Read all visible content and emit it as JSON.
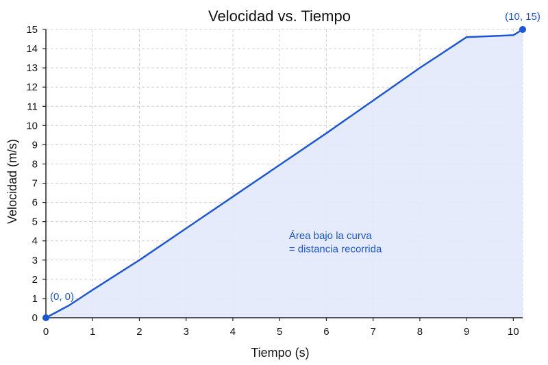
{
  "chart_data": {
    "type": "area",
    "title": "Velocidad vs. Tiempo",
    "xlabel": "Tiempo (s)",
    "ylabel": "Velocidad (m/s)",
    "xlim": [
      0,
      10.2
    ],
    "ylim": [
      0,
      15
    ],
    "x_ticks": [
      0,
      1,
      2,
      3,
      4,
      5,
      6,
      7,
      8,
      9,
      10
    ],
    "y_ticks": [
      0,
      1,
      2,
      3,
      4,
      5,
      6,
      7,
      8,
      9,
      10,
      11,
      12,
      13,
      14,
      15
    ],
    "grid": true,
    "series": [
      {
        "x": [
          0,
          0.5,
          1,
          2,
          3,
          4,
          5,
          6,
          7,
          8,
          9,
          10,
          10.2
        ],
        "y": [
          0,
          0.65,
          1.45,
          3.0,
          4.65,
          6.3,
          7.95,
          9.6,
          11.3,
          13.0,
          14.6,
          14.7,
          15
        ]
      }
    ],
    "annotations": [
      {
        "text": "(0, 0)",
        "x": 0,
        "y": 0
      },
      {
        "text": "(10, 15)",
        "x": 10.2,
        "y": 15
      },
      {
        "text": "Área bajo la curva",
        "x": 5.2,
        "y": 4.1
      },
      {
        "text": "= distancia recorrida",
        "x": 5.2,
        "y": 3.4
      }
    ],
    "colors": {
      "line": "#1a56db",
      "fill": "#e3e9fb",
      "point": "#1a56db",
      "annotation": "#1a56db"
    }
  }
}
